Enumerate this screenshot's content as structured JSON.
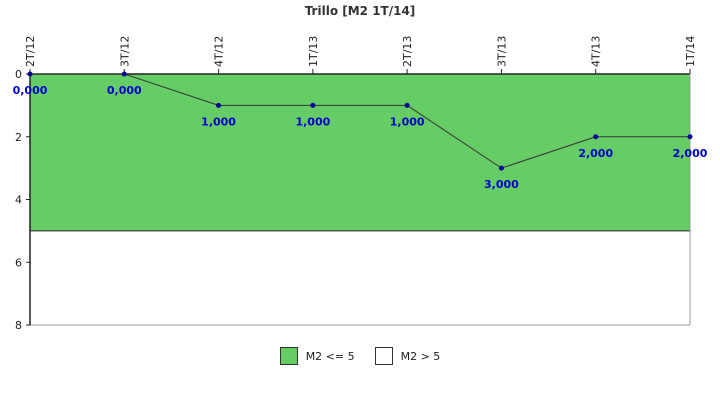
{
  "chart_data": {
    "type": "line",
    "title": "Trillo [M2 1T/14]",
    "categories": [
      "2T/12",
      "3T/12",
      "4T/12",
      "1T/13",
      "2T/13",
      "3T/13",
      "4T/13",
      "1T/14"
    ],
    "values": [
      0,
      0,
      1,
      1,
      1,
      3,
      2,
      2
    ],
    "value_labels": [
      "0,000",
      "0,000",
      "1,000",
      "1,000",
      "1,000",
      "3,000",
      "2,000",
      "2,000"
    ],
    "y_ticks": [
      "0",
      "2",
      "4",
      "6",
      "8"
    ],
    "ylim": [
      0,
      8
    ],
    "y_inverted": true,
    "bands": [
      {
        "label": "M2 <= 5",
        "from": 0,
        "to": 5,
        "color": "#66cc66"
      },
      {
        "label": "M2 > 5",
        "from": 5,
        "to": 8,
        "color": "#ffffff"
      }
    ],
    "line_color": "#333333",
    "point_color": "#000099",
    "legend_position": "bottom-center"
  }
}
